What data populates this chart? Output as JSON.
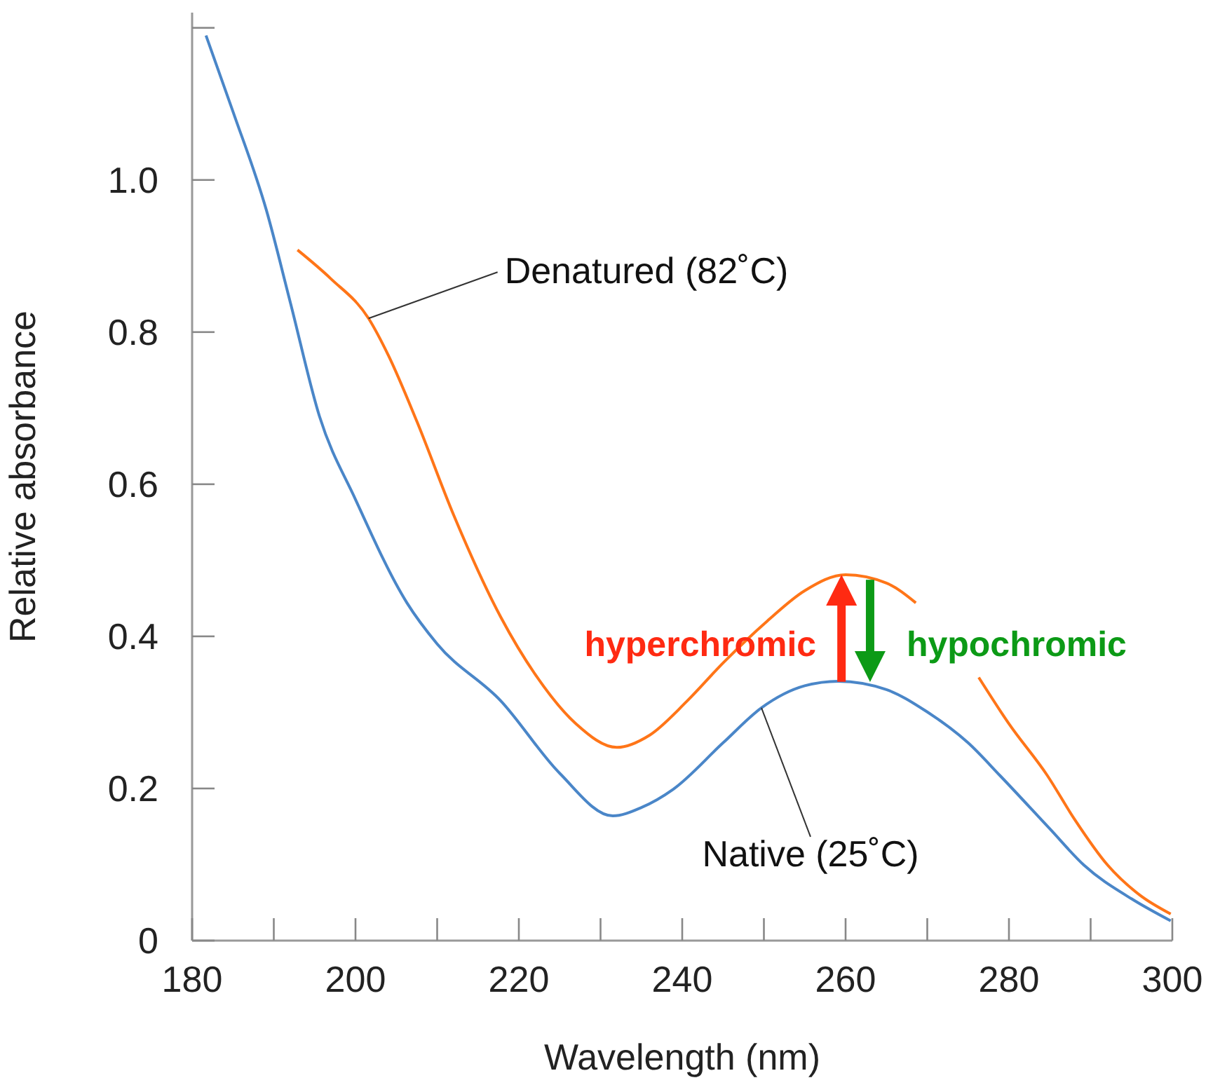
{
  "chart_data": {
    "type": "line",
    "xlabel": "Wavelength (nm)",
    "ylabel": "Relative absorbance",
    "xlim": [
      180,
      300
    ],
    "ylim": [
      0,
      1.22
    ],
    "xticks": [
      180,
      {
        "value": 190,
        "label": null
      },
      200,
      {
        "value": 210,
        "label": null
      },
      220,
      {
        "value": 230,
        "label": null
      },
      240,
      {
        "value": 250,
        "label": null
      },
      260,
      {
        "value": 270,
        "label": null
      },
      280,
      {
        "value": 290,
        "label": null
      },
      300
    ],
    "yticks": [
      0,
      0.2,
      0.4,
      0.6,
      0.8,
      {
        "value": 1,
        "label": "1.0"
      },
      {
        "value": 1.2,
        "label": null
      }
    ],
    "grid": false,
    "legend": false,
    "marker": "none",
    "line_style": "solid",
    "series": [
      {
        "color": "#4a86c8",
        "x": [
          181.7,
          185,
          189.1,
          192,
          195.6,
          200,
          206.3,
          210,
          217.8,
          225,
          231.5,
          235,
          238.9,
          245,
          249.7,
          255,
          259.1,
          265,
          269.8,
          275,
          278.9,
          285,
          289.2,
          295,
          299.8
        ],
        "values": [
          1.19,
          1.09,
          0.96,
          0.84,
          0.689,
          0.58,
          0.444,
          0.39,
          0.315,
          0.22,
          0.164,
          0.175,
          0.199,
          0.26,
          0.306,
          0.335,
          0.341,
          0.33,
          0.302,
          0.26,
          0.217,
          0.147,
          0.099,
          0.055,
          0.026
        ]
      },
      {
        "color": "#ff7518",
        "x": [
          192.9,
          197,
          201.6,
          204,
          207.5,
          212,
          217.8,
          222,
          227,
          232,
          236,
          240.6,
          245,
          250.4,
          255,
          260,
          265,
          268.6,
          272,
          276.3,
          280,
          284.7,
          288,
          292.1,
          296,
          299.8
        ],
        "values": [
          0.908,
          0.87,
          0.818,
          0.77,
          0.683,
          0.56,
          0.425,
          0.35,
          0.285,
          0.254,
          0.27,
          0.315,
          0.365,
          0.42,
          0.46,
          0.481,
          0.47,
          0.444,
          null,
          0.346,
          0.285,
          0.217,
          0.16,
          0.099,
          0.06,
          0.035
        ]
      }
    ],
    "annotations": [
      {
        "text": "Denatured (82˚C)",
        "x": 201.6,
        "y": 0.818
      },
      {
        "text": "Native (25˚C)",
        "x": 249.7,
        "y": 0.306
      },
      {
        "text": "hyperchromic",
        "x": 259.5,
        "y": 0.481
      },
      {
        "text": "hypochromic",
        "x": 263,
        "y": 0.34
      }
    ]
  }
}
